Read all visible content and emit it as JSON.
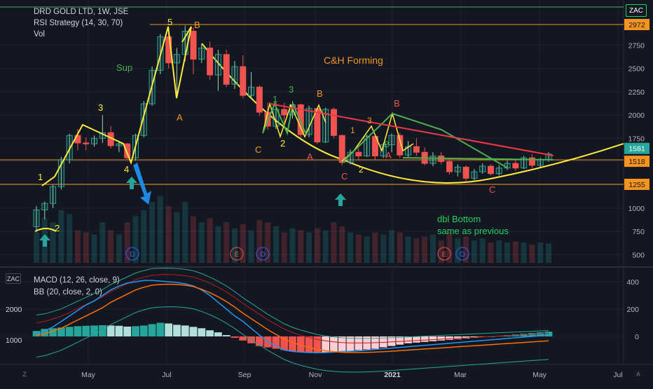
{
  "chart_data": {
    "type": "candlestick",
    "symbol": "DRD GOLD LTD",
    "interval": "1W",
    "exchange": "JSE",
    "indicators": [
      "RSI Strategy (14, 30, 70)",
      "Vol"
    ],
    "sub_indicators": [
      "MACD (12, 26, close, 9)",
      "BB (20, close, 2, 0)"
    ],
    "price_axis_ticks": [
      500,
      750,
      1000,
      1250,
      1500,
      1750,
      2000,
      2250,
      2500,
      2750
    ],
    "price_axis_range": [
      420,
      2980
    ],
    "macd_axis_ticks": [
      400,
      200,
      0
    ],
    "bb_axis_ticks": [
      2000,
      1000
    ],
    "time_axis_labels": [
      "May",
      "Jul",
      "Sep",
      "Nov",
      "2021",
      "Mar",
      "May",
      "Jul"
    ],
    "price_labels": [
      {
        "value": "2972",
        "color": "#f7941d"
      },
      {
        "value": "1581",
        "color": "#131722"
      },
      {
        "value": "1518",
        "color": "#f7941d"
      },
      {
        "value": "1255",
        "color": "#f7941d"
      }
    ],
    "horizontal_levels": [
      2972,
      1518,
      1255
    ],
    "candles": [
      {
        "o": 800,
        "h": 1020,
        "l": 740,
        "c": 980
      },
      {
        "o": 980,
        "h": 1070,
        "l": 880,
        "c": 1050
      },
      {
        "o": 1050,
        "h": 1250,
        "l": 1000,
        "c": 1230
      },
      {
        "o": 1230,
        "h": 1550,
        "l": 1200,
        "c": 1520
      },
      {
        "o": 1520,
        "h": 1800,
        "l": 1480,
        "c": 1780
      },
      {
        "o": 1780,
        "h": 1850,
        "l": 1620,
        "c": 1700
      },
      {
        "o": 1700,
        "h": 1760,
        "l": 1620,
        "c": 1690
      },
      {
        "o": 1690,
        "h": 1780,
        "l": 1660,
        "c": 1750
      },
      {
        "o": 1750,
        "h": 2000,
        "l": 1700,
        "c": 1810
      },
      {
        "o": 1810,
        "h": 1880,
        "l": 1640,
        "c": 1670
      },
      {
        "o": 1670,
        "h": 1720,
        "l": 1600,
        "c": 1690
      },
      {
        "o": 1690,
        "h": 1700,
        "l": 1520,
        "c": 1540
      },
      {
        "o": 1540,
        "h": 1800,
        "l": 1510,
        "c": 1780
      },
      {
        "o": 1780,
        "h": 2150,
        "l": 1760,
        "c": 2120
      },
      {
        "o": 2120,
        "h": 2520,
        "l": 2100,
        "c": 2480
      },
      {
        "o": 2480,
        "h": 2870,
        "l": 2440,
        "c": 2840
      },
      {
        "o": 2840,
        "h": 2950,
        "l": 2500,
        "c": 2560
      },
      {
        "o": 2560,
        "h": 2720,
        "l": 2200,
        "c": 2650
      },
      {
        "o": 2650,
        "h": 2960,
        "l": 2580,
        "c": 2900
      },
      {
        "o": 2900,
        "h": 2940,
        "l": 2440,
        "c": 2600
      },
      {
        "o": 2600,
        "h": 2760,
        "l": 2560,
        "c": 2720
      },
      {
        "o": 2720,
        "h": 2790,
        "l": 2380,
        "c": 2430
      },
      {
        "o": 2430,
        "h": 2700,
        "l": 2260,
        "c": 2650
      },
      {
        "o": 2650,
        "h": 2700,
        "l": 2300,
        "c": 2330
      },
      {
        "o": 2330,
        "h": 2580,
        "l": 2280,
        "c": 2520
      },
      {
        "o": 2520,
        "h": 2640,
        "l": 2180,
        "c": 2210
      },
      {
        "o": 2210,
        "h": 2460,
        "l": 2180,
        "c": 2300
      },
      {
        "o": 2300,
        "h": 2320,
        "l": 1990,
        "c": 2030
      },
      {
        "o": 2030,
        "h": 2130,
        "l": 1840,
        "c": 1880
      },
      {
        "o": 1880,
        "h": 2130,
        "l": 1850,
        "c": 2060
      },
      {
        "o": 2060,
        "h": 2130,
        "l": 1920,
        "c": 2000
      },
      {
        "o": 2000,
        "h": 2150,
        "l": 1960,
        "c": 2110
      },
      {
        "o": 2110,
        "h": 2120,
        "l": 1760,
        "c": 1790
      },
      {
        "o": 1790,
        "h": 2100,
        "l": 1760,
        "c": 2070
      },
      {
        "o": 2070,
        "h": 2080,
        "l": 1690,
        "c": 1710
      },
      {
        "o": 1710,
        "h": 2080,
        "l": 1700,
        "c": 2060
      },
      {
        "o": 2060,
        "h": 2080,
        "l": 1750,
        "c": 1780
      },
      {
        "o": 1780,
        "h": 1790,
        "l": 1460,
        "c": 1490
      },
      {
        "o": 1490,
        "h": 1630,
        "l": 1470,
        "c": 1600
      },
      {
        "o": 1600,
        "h": 1640,
        "l": 1520,
        "c": 1560
      },
      {
        "o": 1560,
        "h": 1790,
        "l": 1550,
        "c": 1770
      },
      {
        "o": 1770,
        "h": 1780,
        "l": 1520,
        "c": 1560
      },
      {
        "o": 1560,
        "h": 1700,
        "l": 1540,
        "c": 1680
      },
      {
        "o": 1680,
        "h": 1800,
        "l": 1600,
        "c": 1780
      },
      {
        "o": 1780,
        "h": 1810,
        "l": 1540,
        "c": 1570
      },
      {
        "o": 1570,
        "h": 1720,
        "l": 1550,
        "c": 1660
      },
      {
        "o": 1660,
        "h": 1750,
        "l": 1560,
        "c": 1600
      },
      {
        "o": 1600,
        "h": 1650,
        "l": 1460,
        "c": 1480
      },
      {
        "o": 1480,
        "h": 1600,
        "l": 1450,
        "c": 1560
      },
      {
        "o": 1560,
        "h": 1600,
        "l": 1470,
        "c": 1500
      },
      {
        "o": 1500,
        "h": 1540,
        "l": 1360,
        "c": 1390
      },
      {
        "o": 1390,
        "h": 1470,
        "l": 1340,
        "c": 1440
      },
      {
        "o": 1440,
        "h": 1460,
        "l": 1290,
        "c": 1320
      },
      {
        "o": 1320,
        "h": 1420,
        "l": 1300,
        "c": 1390
      },
      {
        "o": 1390,
        "h": 1480,
        "l": 1370,
        "c": 1450
      },
      {
        "o": 1450,
        "h": 1470,
        "l": 1350,
        "c": 1370
      },
      {
        "o": 1370,
        "h": 1460,
        "l": 1350,
        "c": 1430
      },
      {
        "o": 1430,
        "h": 1510,
        "l": 1410,
        "c": 1480
      },
      {
        "o": 1480,
        "h": 1520,
        "l": 1400,
        "c": 1430
      },
      {
        "o": 1430,
        "h": 1560,
        "l": 1420,
        "c": 1540
      },
      {
        "o": 1540,
        "h": 1580,
        "l": 1430,
        "c": 1460
      },
      {
        "o": 1460,
        "h": 1540,
        "l": 1440,
        "c": 1520
      },
      {
        "o": 1520,
        "h": 1600,
        "l": 1500,
        "c": 1581
      }
    ],
    "volume": [
      150,
      220,
      200,
      260,
      240,
      160,
      150,
      140,
      200,
      160,
      140,
      200,
      230,
      260,
      300,
      330,
      280,
      250,
      300,
      230,
      200,
      220,
      180,
      200,
      170,
      190,
      160,
      210,
      200,
      180,
      150,
      170,
      160,
      150,
      170,
      160,
      200,
      180,
      150,
      140,
      130,
      150,
      140,
      160,
      150,
      130,
      120,
      130,
      140,
      110,
      150,
      120,
      130,
      110,
      120,
      100,
      110,
      100,
      105,
      100,
      90,
      100,
      95
    ],
    "macd_histogram": [
      40,
      55,
      60,
      65,
      70,
      75,
      78,
      80,
      82,
      80,
      78,
      72,
      75,
      80,
      90,
      100,
      95,
      85,
      80,
      70,
      60,
      45,
      30,
      10,
      -10,
      -30,
      -50,
      -70,
      -80,
      -90,
      -100,
      -110,
      -115,
      -118,
      -120,
      -118,
      -115,
      -110,
      -105,
      -100,
      -95,
      -90,
      -80,
      -70,
      -60,
      -50,
      -45,
      -40,
      -35,
      -30,
      -25,
      -20,
      -15,
      -10,
      -5,
      0,
      5,
      10,
      15,
      20,
      25,
      30,
      35
    ],
    "macd_line": [
      20,
      40,
      70,
      110,
      150,
      190,
      230,
      260,
      300,
      340,
      370,
      390,
      400,
      410,
      410,
      405,
      400,
      395,
      385,
      370,
      340,
      300,
      250,
      200,
      150,
      110,
      60,
      10,
      -40,
      -70,
      -100,
      -110,
      -115,
      -118,
      -120,
      -118,
      -115,
      -110,
      -108,
      -105,
      -100,
      -95,
      -90,
      -85,
      -80,
      -75,
      -70,
      -65,
      -60,
      -55,
      -50,
      -45,
      -40,
      -35,
      -30,
      -25,
      -20,
      -15,
      -10,
      -5,
      0,
      5,
      10
    ],
    "signal_line": [
      10,
      20,
      40,
      60,
      90,
      120,
      150,
      180,
      210,
      250,
      280,
      310,
      340,
      360,
      375,
      380,
      382,
      380,
      375,
      365,
      345,
      320,
      290,
      255,
      215,
      170,
      130,
      90,
      50,
      15,
      -20,
      -45,
      -65,
      -80,
      -95,
      -105,
      -112,
      -116,
      -118,
      -118,
      -117,
      -115,
      -112,
      -108,
      -104,
      -100,
      -96,
      -92,
      -88,
      -84,
      -80,
      -76,
      -72,
      -68,
      -64,
      -60,
      -56,
      -52,
      -48,
      -44,
      -40,
      -36,
      -32
    ],
    "annotations": {
      "waves": [
        "1",
        "2",
        "3",
        "4",
        "5",
        "A",
        "B",
        "C"
      ],
      "corrective": [
        "1",
        "2",
        "3",
        "A",
        "B",
        "C",
        "A",
        "B",
        "C"
      ],
      "texts": [
        "Sup",
        "C&H  Forming",
        "dbl Bottom",
        "same as previous"
      ],
      "event_markers": [
        "D",
        "E",
        "D",
        "E",
        "D"
      ]
    }
  },
  "ui": {
    "zac_top": "ZAC",
    "zac_bottom": "ZAC",
    "corner_left": "Z",
    "corner_right": "A"
  }
}
